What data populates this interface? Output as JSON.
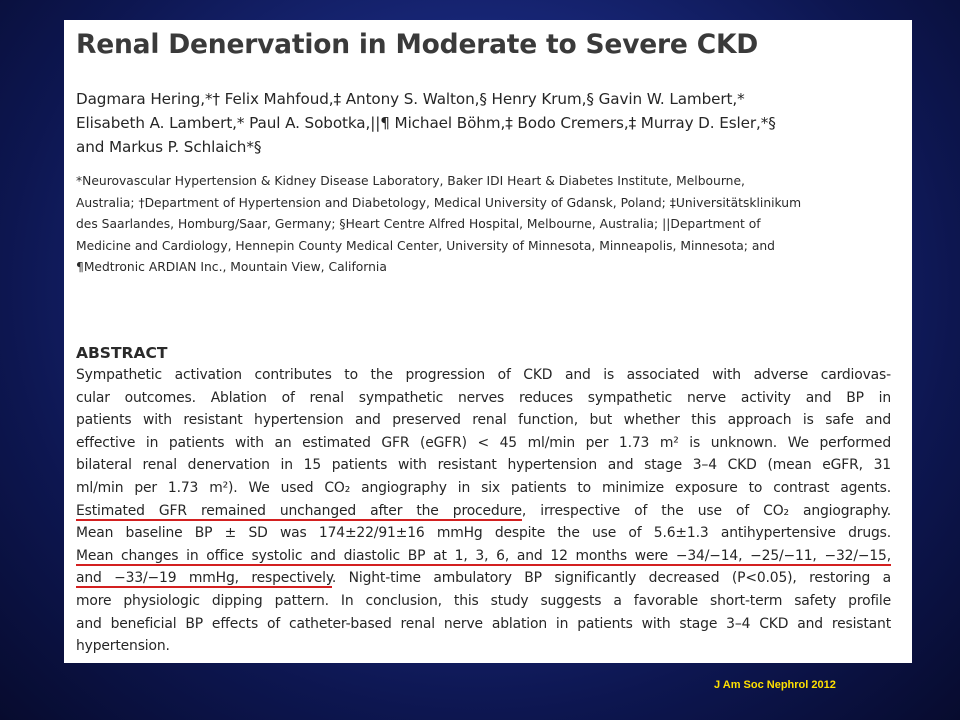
{
  "paper": {
    "title": "Renal Denervation in Moderate to Severe CKD",
    "authors": [
      "Dagmara Hering,*† Felix Mahfoud,‡ Antony S. Walton,§ Henry Krum,§ Gavin W. Lambert,*",
      "Elisabeth A. Lambert,* Paul A. Sobotka,||¶ Michael Böhm,‡ Bodo Cremers,‡ Murray D. Esler,*§",
      "and Markus P. Schlaich*§"
    ],
    "affiliations": [
      "*Neurovascular Hypertension & Kidney Disease Laboratory, Baker IDI Heart & Diabetes Institute, Melbourne,",
      "Australia; †Department of Hypertension and Diabetology, Medical University of Gdansk, Poland; ‡Universitätsklinikum",
      "des Saarlandes, Homburg/Saar, Germany; §Heart Centre Alfred Hospital, Melbourne, Australia; ||Department of",
      "Medicine and Cardiology, Hennepin County Medical Center, University of Minnesota, Minneapolis, Minnesota; and",
      "¶Medtronic ARDIAN Inc., Mountain View, California"
    ],
    "abstract_heading": "ABSTRACT",
    "abstract_lines": [
      "Sympathetic activation contributes to the progression of CKD and is associated with adverse cardiovas-",
      "cular outcomes. Ablation of renal sympathetic nerves reduces sympathetic nerve activity and BP in",
      "patients with resistant hypertension and preserved renal function, but whether this approach is safe and",
      "effective in patients with an estimated GFR (eGFR) < 45 ml/min per 1.73 m² is unknown. We performed",
      "bilateral renal denervation in 15 patients with resistant hypertension and stage 3–4 CKD (mean eGFR, 31",
      "ml/min per 1.73 m²). We used CO₂ angiography in six patients to minimize exposure to contrast agents."
    ],
    "abstract_line7_underlined": "Estimated GFR remained unchanged after the procedure",
    "abstract_line7_rest": ", irrespective of the use of CO₂ angiography.",
    "abstract_line8": "Mean baseline BP ± SD was 174±22/91±16 mmHg despite the use of 5.6±1.3 antihypertensive drugs.",
    "abstract_line9_underlined": "Mean changes in office systolic and diastolic BP at 1, 3, 6, and 12 months were −34/−14, −25/−11, −32/−15,",
    "abstract_line10_underlined": "and −33/−19 mmHg, respectively",
    "abstract_line10_rest": ". Night-time ambulatory BP significantly decreased (P<0.05), restoring a",
    "abstract_lines_tail": [
      "more physiologic dipping pattern. In conclusion, this study suggests a favorable short-term safety profile",
      "and beneficial BP effects of catheter-based renal nerve ablation in patients with stage 3–4 CKD and resistant",
      "hypertension."
    ]
  },
  "citation": "J Am Soc Nephrol 2012",
  "colors": {
    "underline": "#d32020",
    "citation": "#ffe000",
    "background": "#1a2a80"
  }
}
